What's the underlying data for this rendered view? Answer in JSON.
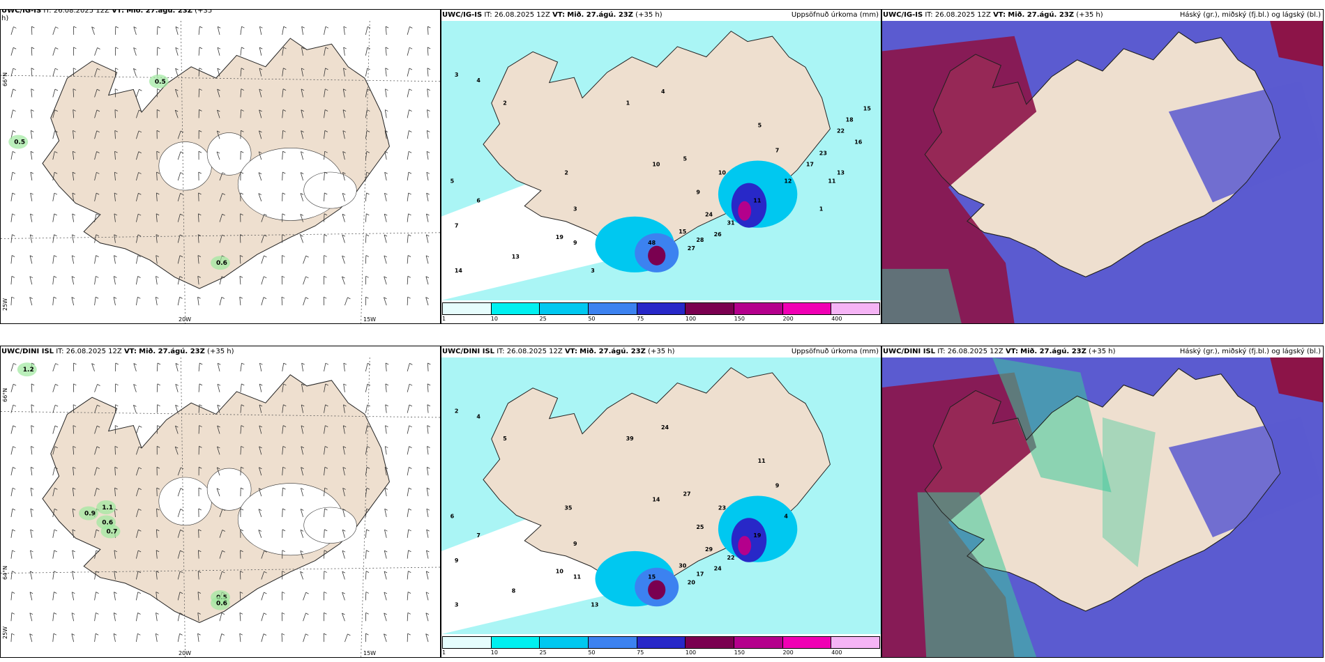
{
  "panels": [
    {
      "model": "UWC/IG-IS",
      "it": "IT: 26.08.2025 12Z",
      "vt_label": "VT:",
      "vt": "Mið. 27.ágú. 23Z",
      "lead": "(+35",
      "lead2": "h)",
      "right": "",
      "kind": "wind"
    },
    {
      "model": "UWC/IG-IS",
      "it": "IT: 26.08.2025 12Z",
      "vt_label": "VT:",
      "vt": "Mið. 27.ágú. 23Z",
      "lead": "(+35 h)",
      "right": "Uppsöfnuð úrkoma (mm)",
      "kind": "precip"
    },
    {
      "model": "UWC/IG-IS",
      "it": "IT: 26.08.2025 12Z",
      "vt_label": "VT:",
      "vt": "Mið. 27.ágú. 23Z",
      "lead": "(+35 h)",
      "right": "Háský (gr.), miðský (fj.bl.) og lágský (bl.)",
      "kind": "cloud"
    },
    {
      "model": "UWC/DINI ISL",
      "it": "IT: 26.08.2025 12Z",
      "vt_label": "VT:",
      "vt": "Mið. 27.ágú. 23Z",
      "lead": "(+35 h)",
      "right": "",
      "kind": "wind"
    },
    {
      "model": "UWC/DINI ISL",
      "it": "IT: 26.08.2025 12Z",
      "vt_label": "VT:",
      "vt": "Mið. 27.ágú. 23Z",
      "lead": "(+35 h)",
      "right": "Uppsöfnuð úrkoma (mm)",
      "kind": "precip"
    },
    {
      "model": "UWC/DINI ISL",
      "it": "IT: 26.08.2025 12Z",
      "vt_label": "VT:",
      "vt": "Mið. 27.ágú. 23Z",
      "lead": "(+35 h)",
      "right": "Háský (gr.), miðský (fj.bl.) og lágský (bl.)",
      "kind": "cloud"
    }
  ],
  "axis_labels": {
    "lat66": "66°N",
    "lat64": "64°N",
    "lat25": "25W",
    "lon20": "20W",
    "lon15": "15W"
  },
  "wind_values_top": [
    "0.5",
    "0.6",
    "0.5"
  ],
  "wind_values_bottom": [
    "1.1",
    "0.9",
    "0.6",
    "0.7",
    "0.5",
    "0.6",
    "1.2"
  ],
  "colorbar": {
    "labels": [
      "1",
      "10",
      "25",
      "50",
      "75",
      "100",
      "150",
      "200",
      "400"
    ],
    "colors": [
      "#e6fdfd",
      "#00f0f0",
      "#00c8f0",
      "#3c82f0",
      "#2828c8",
      "#7a0050",
      "#b4008c",
      "#f000b4",
      "#f5b4f5"
    ]
  },
  "precip_labels_top": [
    "3",
    "4",
    "2",
    "5",
    "6",
    "7",
    "10",
    "14",
    "13",
    "19",
    "9",
    "3",
    "3",
    "2",
    "1",
    "4",
    "5",
    "9",
    "10",
    "11",
    "15",
    "24",
    "31",
    "26",
    "28",
    "27",
    "48",
    "5",
    "7",
    "12",
    "17",
    "23",
    "22",
    "18",
    "15",
    "16",
    "13",
    "11",
    "1"
  ],
  "precip_labels_bottom": [
    "2",
    "4",
    "5",
    "6",
    "7",
    "9",
    "14",
    "3",
    "8",
    "10",
    "11",
    "13",
    "9",
    "35",
    "39",
    "24",
    "27",
    "25",
    "23",
    "19",
    "30",
    "29",
    "22",
    "24",
    "17",
    "20",
    "15",
    "11",
    "9",
    "4"
  ],
  "colors": {
    "land": "#eedfcf",
    "sea": "#ffffff",
    "precip_light": "#aaf5f5",
    "cloud_low": "#5b5bd0",
    "cloud_mid": "#8c1448",
    "cloud_high": "#3cc89a"
  }
}
